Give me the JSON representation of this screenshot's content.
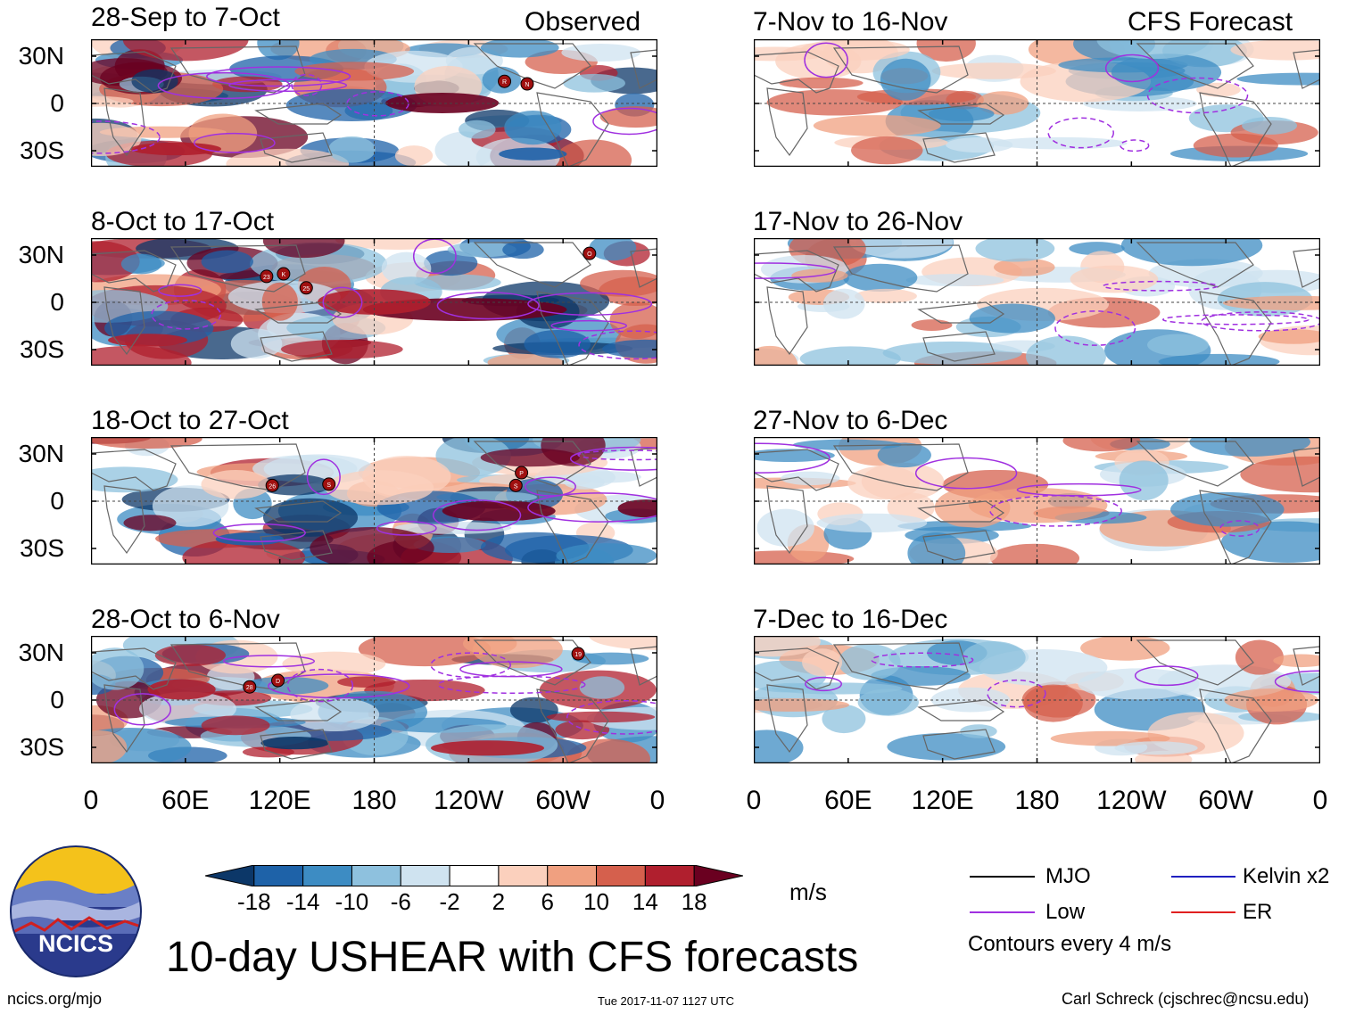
{
  "title": "10-day USHEAR with CFS forecasts",
  "header": {
    "left": "Observed",
    "right": "CFS Forecast"
  },
  "panels_left": [
    {
      "label": "28-Sep to 7-Oct"
    },
    {
      "label": "8-Oct to 17-Oct"
    },
    {
      "label": "18-Oct to 27-Oct"
    },
    {
      "label": "28-Oct to 6-Nov"
    }
  ],
  "panels_right": [
    {
      "label": "7-Nov to 16-Nov"
    },
    {
      "label": "17-Nov to 26-Nov"
    },
    {
      "label": "27-Nov to 6-Dec"
    },
    {
      "label": "7-Dec to 16-Dec"
    }
  ],
  "y_ticks": [
    "30N",
    "0",
    "30S"
  ],
  "x_ticks": [
    "0",
    "60E",
    "120E",
    "180",
    "120W",
    "60W",
    "0"
  ],
  "storms": [
    {
      "panel": 0,
      "labels": [
        "R",
        "N"
      ]
    },
    {
      "panel": 1,
      "labels": [
        "23",
        "K",
        "25",
        "O"
      ]
    },
    {
      "panel": 2,
      "labels": [
        "26",
        "S",
        "P",
        "S"
      ]
    },
    {
      "panel": 3,
      "labels": [
        "28",
        "D",
        "19"
      ]
    }
  ],
  "colorbar": {
    "unit": "m/s",
    "labels": [
      "-18",
      "-14",
      "-10",
      "-6",
      "-2",
      "2",
      "6",
      "10",
      "14",
      "18"
    ],
    "colors": [
      "#0c3768",
      "#1e62a8",
      "#3d8cc3",
      "#8ec1de",
      "#cfe3f0",
      "#ffffff",
      "#fbd0bd",
      "#f0a080",
      "#d5604d",
      "#b01f2e",
      "#6a0020"
    ]
  },
  "legend": {
    "items": [
      {
        "label": "MJO",
        "color": "#000000"
      },
      {
        "label": "Kelvin x2",
        "color": "#2020c0"
      },
      {
        "label": "Low",
        "color": "#a030e0"
      },
      {
        "label": "ER",
        "color": "#e02020"
      }
    ],
    "note": "Contours every 4 m/s"
  },
  "logo": {
    "text": "NCICS"
  },
  "footer": {
    "url": "ncics.org/mjo",
    "timestamp": "Tue 2017-11-07 1127 UTC",
    "author": "Carl Schreck (cjschrec@ncsu.edu)"
  }
}
